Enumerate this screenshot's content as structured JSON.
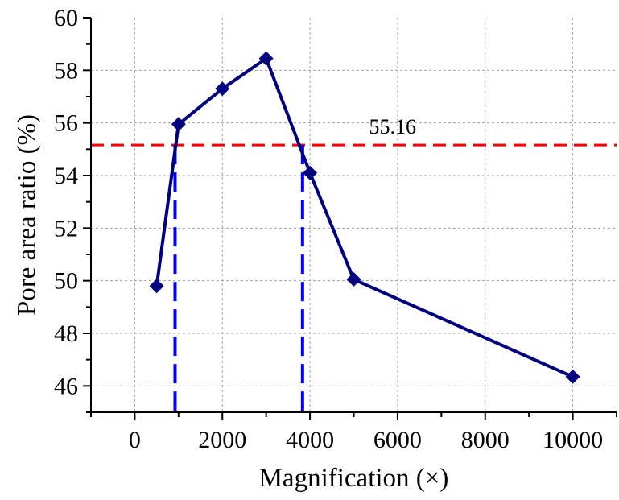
{
  "chart_data": {
    "type": "line",
    "title": "",
    "xlabel": "Magnification (×)",
    "ylabel": "Pore area ratio (%)",
    "xlim": [
      -1000,
      11000
    ],
    "ylim": [
      45,
      60
    ],
    "x_ticks": [
      0,
      2000,
      4000,
      6000,
      8000,
      10000
    ],
    "y_ticks": [
      46,
      48,
      50,
      52,
      54,
      56,
      58,
      60
    ],
    "x_tick_labels": [
      "0",
      "2000",
      "4000",
      "6000",
      "8000",
      "10000"
    ],
    "y_tick_labels": [
      "46",
      "48",
      "50",
      "52",
      "54",
      "56",
      "58",
      "60"
    ],
    "grid": true,
    "series": [
      {
        "x": [
          500,
          1000,
          2000,
          3000,
          4000,
          5000,
          10000
        ],
        "y": [
          49.8,
          55.95,
          57.3,
          58.45,
          54.1,
          50.05,
          46.35
        ],
        "color": "#000080",
        "marker": "diamond"
      }
    ],
    "reference_lines": {
      "horizontal": {
        "y": 55.16,
        "color": "#ff0000",
        "style": "dashed"
      },
      "vertical": [
        {
          "x": 920,
          "color": "#0000ff",
          "style": "dashed"
        },
        {
          "x": 3830,
          "color": "#0000ff",
          "style": "dashed"
        }
      ]
    },
    "annotation": {
      "text": "55.16",
      "x": 5350,
      "y": 55.16
    }
  }
}
